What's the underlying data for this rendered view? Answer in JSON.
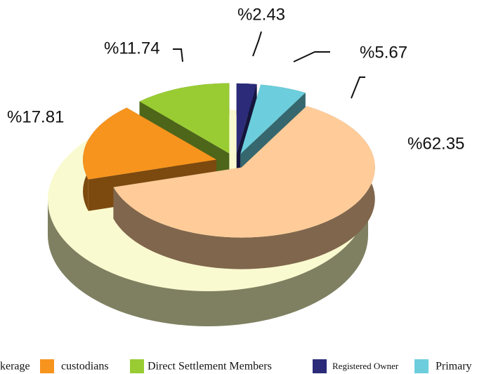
{
  "chart_data": {
    "type": "pie3d",
    "series": [
      {
        "name": "Registered Owner",
        "color": "#2b2b7a",
        "values": [
          2.43
        ],
        "value_labels": [
          "%2.43"
        ]
      },
      {
        "name": "Primary",
        "color": "#6ccedc",
        "values": [
          5.67
        ],
        "value_labels": [
          "%5.67"
        ]
      },
      {
        "name": "kerage",
        "color": "#ffcc99",
        "values": [
          62.35
        ],
        "value_labels": [
          "%62.35"
        ]
      },
      {
        "name": "custodians",
        "color": "#f7941d",
        "values": [
          17.81
        ],
        "value_labels": [
          "%17.81"
        ]
      },
      {
        "name": "Direct Settlement Members",
        "color": "#99cc33",
        "values": [
          11.74
        ],
        "value_labels": [
          "%11.74"
        ]
      }
    ]
  }
}
